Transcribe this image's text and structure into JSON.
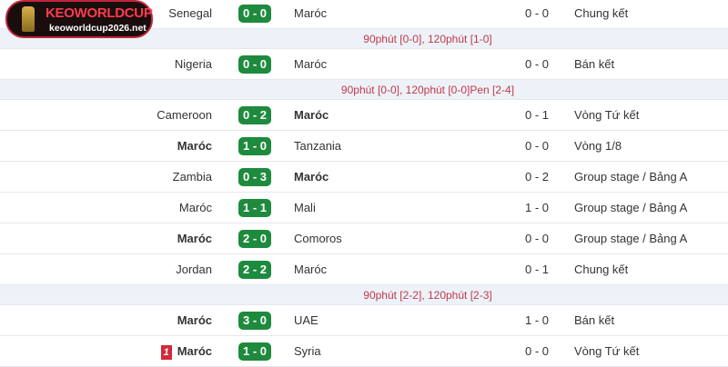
{
  "logo": {
    "title": "KEOWORLDCUP",
    "domain": "keoworldcup2026.net"
  },
  "rows": [
    {
      "type": "match",
      "home": "Senegal",
      "score": "0 - 0",
      "away": "Maróc",
      "ht": "0 - 0",
      "round": "Chung kết",
      "bold": ""
    },
    {
      "type": "note",
      "text": "90phút [0-0], 120phút [1-0]"
    },
    {
      "type": "match",
      "home": "Nigeria",
      "score": "0 - 0",
      "away": "Maróc",
      "ht": "0 - 0",
      "round": "Bán kết",
      "bold": ""
    },
    {
      "type": "note",
      "text": "90phút [0-0], 120phút [0-0]Pen [2-4]"
    },
    {
      "type": "match",
      "home": "Cameroon",
      "score": "0 - 2",
      "away": "Maróc",
      "ht": "0 - 1",
      "round": "Vòng Tứ kết",
      "bold": "away"
    },
    {
      "type": "match",
      "home": "Maróc",
      "score": "1 - 0",
      "away": "Tanzania",
      "ht": "0 - 0",
      "round": "Vòng 1/8",
      "bold": "home"
    },
    {
      "type": "match",
      "home": "Zambia",
      "score": "0 - 3",
      "away": "Maróc",
      "ht": "0 - 2",
      "round": "Group stage / Bảng A",
      "bold": "away"
    },
    {
      "type": "match",
      "home": "Maróc",
      "score": "1 - 1",
      "away": "Mali",
      "ht": "1 - 0",
      "round": "Group stage / Bảng A",
      "bold": ""
    },
    {
      "type": "match",
      "home": "Maróc",
      "score": "2 - 0",
      "away": "Comoros",
      "ht": "0 - 0",
      "round": "Group stage / Bảng A",
      "bold": "home"
    },
    {
      "type": "match",
      "home": "Jordan",
      "score": "2 - 2",
      "away": "Maróc",
      "ht": "0 - 1",
      "round": "Chung kết",
      "bold": ""
    },
    {
      "type": "note",
      "text": "90phút [2-2], 120phút [2-3]"
    },
    {
      "type": "match",
      "home": "Maróc",
      "score": "3 - 0",
      "away": "UAE",
      "ht": "1 - 0",
      "round": "Bán kết",
      "bold": "home"
    },
    {
      "type": "match",
      "home": "Maróc",
      "score": "1 - 0",
      "away": "Syria",
      "ht": "0 - 0",
      "round": "Vòng Tứ kết",
      "bold": "home",
      "red_card": "1"
    }
  ],
  "colors": {
    "score_bg": "#1e8a3e",
    "note_text": "#c0394b",
    "red_card": "#d3293a"
  }
}
